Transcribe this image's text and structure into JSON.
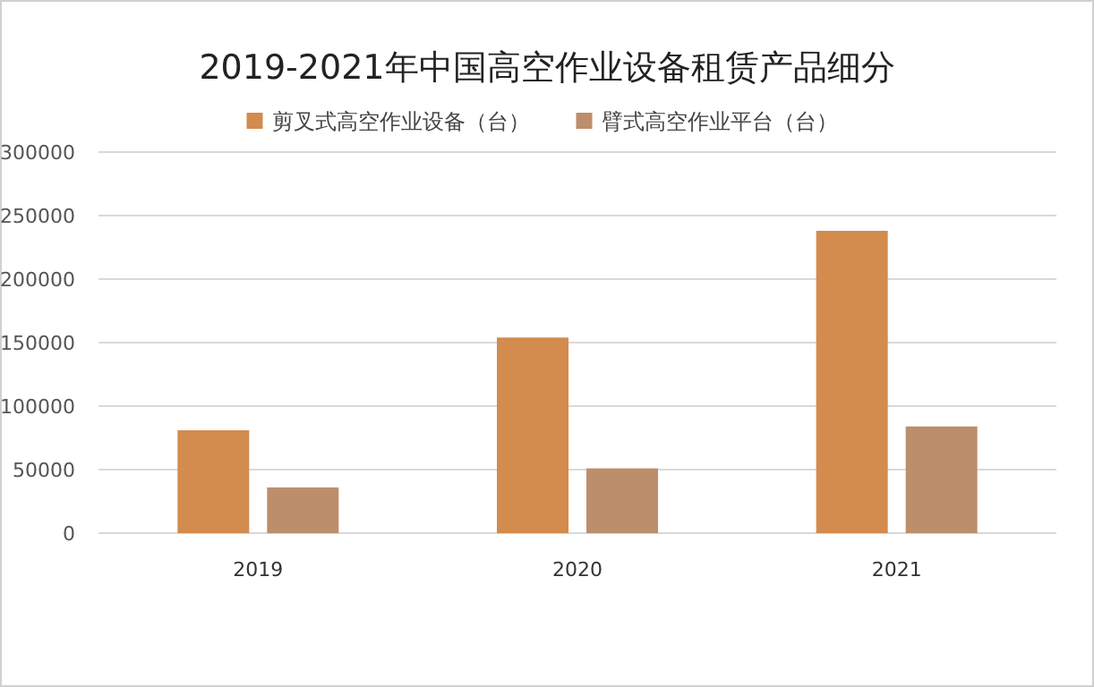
{
  "chart_data": {
    "type": "bar",
    "title": "2019-2021年中国高空作业设备租赁产品细分",
    "categories": [
      "2019",
      "2020",
      "2021"
    ],
    "series": [
      {
        "name": "剪叉式高空作业设备（台）",
        "color": "#d38b4e",
        "values": [
          81000,
          154000,
          238000
        ]
      },
      {
        "name": "臂式高空作业平台（台）",
        "color": "#bd8e6c",
        "values": [
          36000,
          51000,
          84000
        ]
      }
    ],
    "ylim": [
      0,
      300000
    ],
    "yticks": [
      0,
      50000,
      100000,
      150000,
      200000,
      250000,
      300000
    ],
    "grid": "y",
    "legend": "top"
  }
}
